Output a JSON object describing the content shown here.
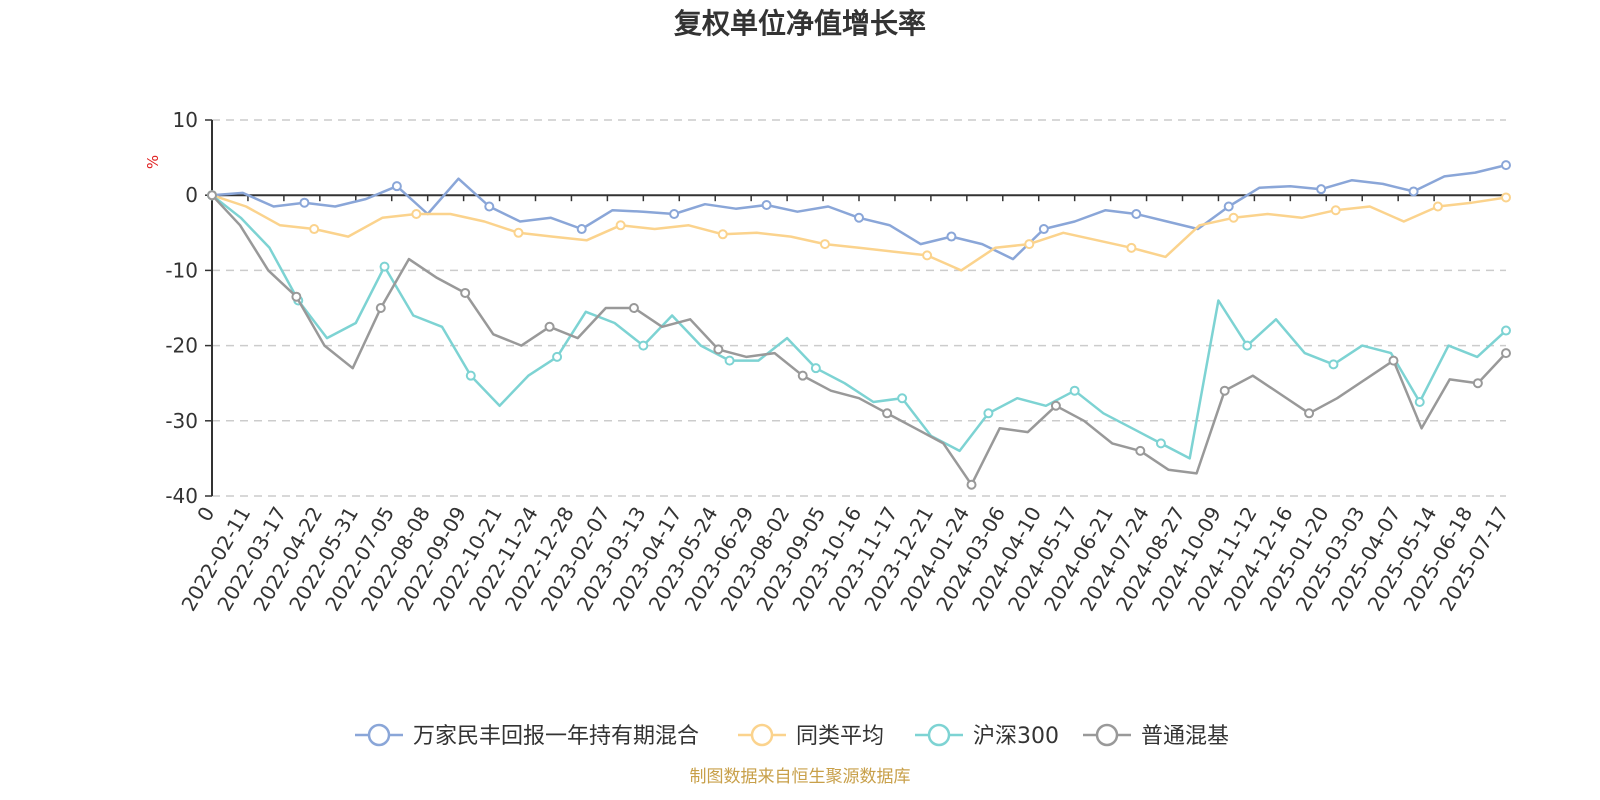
{
  "source_text": "制图数据来自恒生聚源数据库",
  "chart_data": {
    "type": "line",
    "title": "复权单位净值增长率",
    "ylabel": "%",
    "ylim": [
      -40,
      10
    ],
    "yticks": [
      "10",
      "0",
      "-10",
      "-20",
      "-30",
      "-40"
    ],
    "grid": true,
    "legend_position": "bottom",
    "xticks": [
      "0",
      "2022-02-11",
      "2022-03-17",
      "2022-04-22",
      "2022-05-31",
      "2022-07-05",
      "2022-08-08",
      "2022-09-09",
      "2022-10-21",
      "2022-11-24",
      "2022-12-28",
      "2023-02-07",
      "2023-03-13",
      "2023-04-17",
      "2023-05-24",
      "2023-06-29",
      "2023-08-02",
      "2023-09-05",
      "2023-10-16",
      "2023-11-17",
      "2023-12-21",
      "2024-01-24",
      "2024-03-06",
      "2024-04-10",
      "2024-05-17",
      "2024-06-21",
      "2024-07-24",
      "2024-08-27",
      "2024-10-09",
      "2024-11-12",
      "2024-12-16",
      "2025-01-20",
      "2025-03-03",
      "2025-04-07",
      "2025-05-14",
      "2025-06-18",
      "2025-07-17"
    ],
    "series": [
      {
        "name": "万家民丰回报一年持有期混合",
        "color": "#8aa6d8",
        "values": [
          0,
          0.3,
          -1.5,
          -1,
          -1.5,
          -0.5,
          1.2,
          -2.5,
          2.2,
          -1.5,
          -3.5,
          -3,
          -4.5,
          -2,
          -2.2,
          -2.5,
          -1.2,
          -1.8,
          -1.3,
          -2.2,
          -1.5,
          -3,
          -4,
          -6.5,
          -5.5,
          -6.5,
          -8.5,
          -4.5,
          -3.5,
          -2,
          -2.5,
          -3.5,
          -4.5,
          -1.5,
          1,
          1.2,
          0.8,
          2,
          1.5,
          0.5,
          2.5,
          3,
          4
        ]
      },
      {
        "name": "同类平均",
        "color": "#fbd38d",
        "values": [
          0,
          -1.5,
          -4,
          -4.5,
          -5.5,
          -3,
          -2.5,
          -2.5,
          -3.5,
          -5,
          -5.5,
          -6,
          -4,
          -4.5,
          -4,
          -5.2,
          -5,
          -5.5,
          -6.5,
          -7,
          -7.5,
          -8,
          -10,
          -7,
          -6.5,
          -5,
          -6,
          -7,
          -8.2,
          -4,
          -3,
          -2.5,
          -3,
          -2,
          -1.5,
          -3.5,
          -1.5,
          -1,
          -0.3
        ]
      },
      {
        "name": "沪深300",
        "color": "#7dd3d3",
        "values": [
          0,
          -3,
          -7,
          -14,
          -19,
          -17,
          -9.5,
          -16,
          -17.5,
          -24,
          -28,
          -24,
          -21.5,
          -15.5,
          -17,
          -20,
          -16,
          -20,
          -22,
          -22,
          -19,
          -23,
          -25,
          -27.5,
          -27,
          -32,
          -34,
          -29,
          -27,
          -28,
          -26,
          -29,
          -31,
          -33,
          -35,
          -14,
          -20,
          -16.5,
          -21,
          -22.5,
          -20,
          -21,
          -27.5,
          -20,
          -21.5,
          -18
        ]
      },
      {
        "name": "普通混基",
        "color": "#999999",
        "values": [
          0,
          -4,
          -10,
          -13.5,
          -20,
          -23,
          -15,
          -8.5,
          -11,
          -13,
          -18.5,
          -20,
          -17.5,
          -19,
          -15,
          -15,
          -17.5,
          -16.5,
          -20.5,
          -21.5,
          -21,
          -24,
          -26,
          -27,
          -29,
          -31,
          -33,
          -38.5,
          -31,
          -31.5,
          -28,
          -30,
          -33,
          -34,
          -36.5,
          -37,
          -26,
          -24,
          -26.5,
          -29,
          -27,
          -24.5,
          -22,
          -31,
          -24.5,
          -25,
          -21
        ]
      }
    ]
  }
}
